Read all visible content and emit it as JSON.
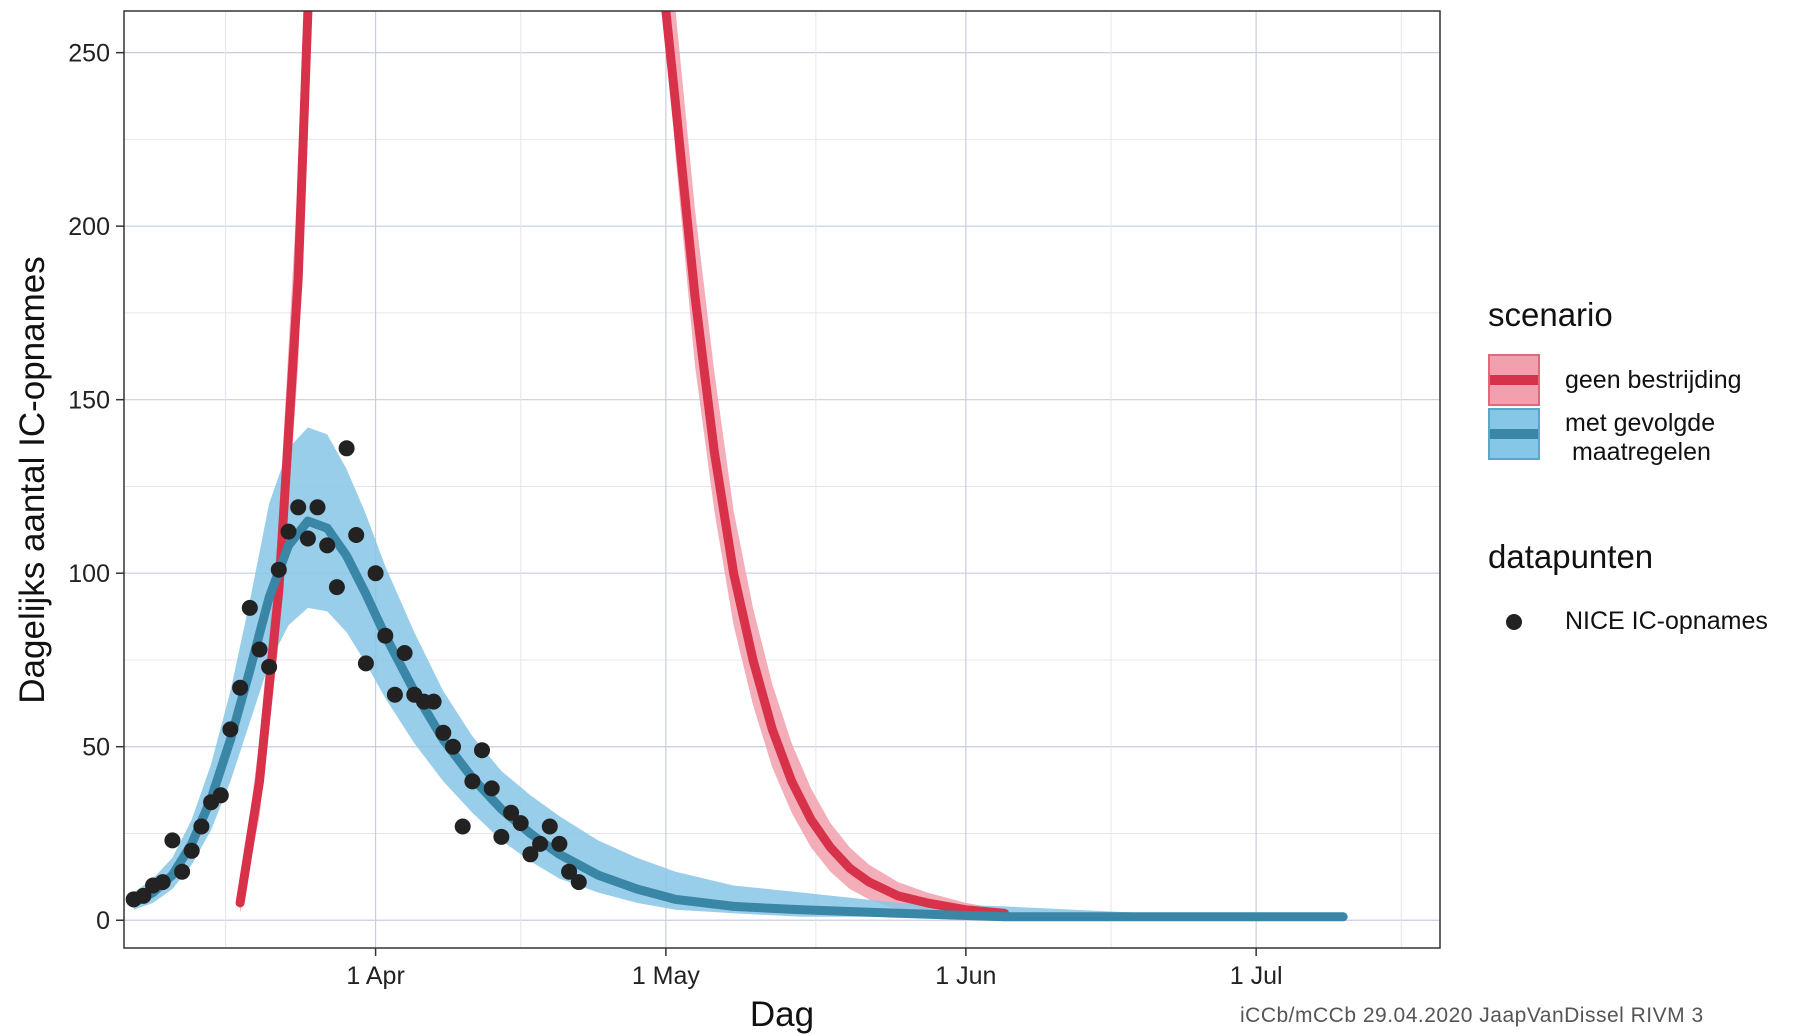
{
  "chart_data": {
    "type": "line",
    "xlabel": "Dag",
    "ylabel": "Dagelijks aantal IC-opnames",
    "ylim": [
      -8,
      262
    ],
    "xlim": [
      "2020-03-06",
      "2020-07-20"
    ],
    "y_ticks": [
      0,
      50,
      100,
      150,
      200,
      250
    ],
    "x_ticks": [
      {
        "date": "2020-04-01",
        "label": "1 Apr"
      },
      {
        "date": "2020-05-01",
        "label": "1 May"
      },
      {
        "date": "2020-06-01",
        "label": "1 Jun"
      },
      {
        "date": "2020-07-01",
        "label": "1 Jul"
      }
    ],
    "grid": true,
    "legend_position": "right",
    "legend_groups": [
      {
        "title": "scenario",
        "entries": [
          {
            "label": "geen bestrijding",
            "key": "ribbon",
            "color": "#d8324a",
            "fill": "#f2a0ad"
          },
          {
            "label": "met gevolgde\n maatregelen",
            "key": "ribbon",
            "color": "#3a86a6",
            "fill": "#86c6e6"
          }
        ]
      },
      {
        "title": "datapunten",
        "entries": [
          {
            "label": "NICE IC-opnames",
            "key": "point",
            "color": "#222222"
          }
        ]
      }
    ],
    "series": [
      {
        "name": "geen bestrijding",
        "type": "line_ribbon",
        "color": "#d8324a",
        "fill": "#f2a0ad",
        "segments": [
          [
            [
              "2020-03-18",
              5,
              2,
              8
            ],
            [
              "2020-03-20",
              40,
              30,
              52
            ],
            [
              "2020-03-22",
              95,
              80,
              115
            ],
            [
              "2020-03-24",
              185,
              160,
              215
            ],
            [
              "2020-03-25",
              262,
              235,
              262
            ]
          ],
          [
            [
              "2020-05-01",
              262,
              262,
              262
            ],
            [
              "2020-05-02",
              235,
              220,
              262
            ],
            [
              "2020-05-04",
              180,
              160,
              205
            ],
            [
              "2020-05-06",
              135,
              118,
              158
            ],
            [
              "2020-05-08",
              100,
              85,
              118
            ],
            [
              "2020-05-10",
              75,
              62,
              90
            ],
            [
              "2020-05-12",
              55,
              44,
              68
            ],
            [
              "2020-05-14",
              40,
              31,
              51
            ],
            [
              "2020-05-16",
              29,
              21,
              38
            ],
            [
              "2020-05-18",
              21,
              14,
              28
            ],
            [
              "2020-05-20",
              15,
              9,
              21
            ],
            [
              "2020-05-22",
              11,
              6,
              16
            ],
            [
              "2020-05-25",
              7,
              3,
              11
            ],
            [
              "2020-05-28",
              5,
              2,
              8
            ],
            [
              "2020-06-01",
              3,
              1,
              5
            ],
            [
              "2020-06-05",
              2,
              1,
              3
            ]
          ]
        ]
      },
      {
        "name": "met gevolgde\n maatregelen",
        "type": "line_ribbon",
        "color": "#3a86a6",
        "fill": "#86c6e6",
        "points": [
          [
            "2020-03-07",
            5,
            3,
            8
          ],
          [
            "2020-03-09",
            8,
            5,
            12
          ],
          [
            "2020-03-11",
            13,
            9,
            18
          ],
          [
            "2020-03-13",
            22,
            16,
            29
          ],
          [
            "2020-03-15",
            35,
            26,
            45
          ],
          [
            "2020-03-17",
            52,
            40,
            66
          ],
          [
            "2020-03-19",
            72,
            57,
            92
          ],
          [
            "2020-03-21",
            93,
            74,
            120
          ],
          [
            "2020-03-23",
            108,
            85,
            136
          ],
          [
            "2020-03-25",
            115,
            90,
            142
          ],
          [
            "2020-03-27",
            113,
            89,
            140
          ],
          [
            "2020-03-29",
            105,
            83,
            130
          ],
          [
            "2020-03-31",
            94,
            74,
            117
          ],
          [
            "2020-04-02",
            82,
            64,
            102
          ],
          [
            "2020-04-05",
            66,
            51,
            83
          ],
          [
            "2020-04-08",
            52,
            40,
            66
          ],
          [
            "2020-04-11",
            41,
            31,
            53
          ],
          [
            "2020-04-14",
            32,
            23,
            43
          ],
          [
            "2020-04-17",
            25,
            17,
            36
          ],
          [
            "2020-04-20",
            19,
            12,
            30
          ],
          [
            "2020-04-24",
            13,
            8,
            23
          ],
          [
            "2020-04-28",
            9,
            5,
            18
          ],
          [
            "2020-05-02",
            6,
            3,
            14
          ],
          [
            "2020-05-08",
            4,
            2,
            10
          ],
          [
            "2020-05-15",
            3,
            1,
            8
          ],
          [
            "2020-05-25",
            2,
            1,
            5
          ],
          [
            "2020-06-05",
            1,
            0,
            4
          ],
          [
            "2020-06-20",
            1,
            0,
            2
          ],
          [
            "2020-07-10",
            1,
            0,
            1
          ]
        ]
      },
      {
        "name": "NICE IC-opnames",
        "type": "scatter",
        "color": "#222222",
        "points": [
          [
            "2020-03-07",
            6
          ],
          [
            "2020-03-08",
            7
          ],
          [
            "2020-03-09",
            10
          ],
          [
            "2020-03-10",
            11
          ],
          [
            "2020-03-11",
            23
          ],
          [
            "2020-03-12",
            14
          ],
          [
            "2020-03-13",
            20
          ],
          [
            "2020-03-14",
            27
          ],
          [
            "2020-03-15",
            34
          ],
          [
            "2020-03-16",
            36
          ],
          [
            "2020-03-17",
            55
          ],
          [
            "2020-03-18",
            67
          ],
          [
            "2020-03-19",
            90
          ],
          [
            "2020-03-20",
            78
          ],
          [
            "2020-03-21",
            73
          ],
          [
            "2020-03-22",
            101
          ],
          [
            "2020-03-23",
            112
          ],
          [
            "2020-03-24",
            119
          ],
          [
            "2020-03-25",
            110
          ],
          [
            "2020-03-26",
            119
          ],
          [
            "2020-03-27",
            108
          ],
          [
            "2020-03-28",
            96
          ],
          [
            "2020-03-29",
            136
          ],
          [
            "2020-03-30",
            111
          ],
          [
            "2020-03-31",
            74
          ],
          [
            "2020-04-01",
            100
          ],
          [
            "2020-04-02",
            82
          ],
          [
            "2020-04-03",
            65
          ],
          [
            "2020-04-04",
            77
          ],
          [
            "2020-04-05",
            65
          ],
          [
            "2020-04-06",
            63
          ],
          [
            "2020-04-07",
            63
          ],
          [
            "2020-04-08",
            54
          ],
          [
            "2020-04-09",
            50
          ],
          [
            "2020-04-10",
            27
          ],
          [
            "2020-04-11",
            40
          ],
          [
            "2020-04-12",
            49
          ],
          [
            "2020-04-13",
            38
          ],
          [
            "2020-04-14",
            24
          ],
          [
            "2020-04-15",
            31
          ],
          [
            "2020-04-16",
            28
          ],
          [
            "2020-04-17",
            19
          ],
          [
            "2020-04-18",
            22
          ],
          [
            "2020-04-19",
            27
          ],
          [
            "2020-04-20",
            22
          ],
          [
            "2020-04-21",
            14
          ],
          [
            "2020-04-22",
            11
          ]
        ]
      }
    ]
  },
  "footer": "iCCb/mCCb 29.04.2020  JaapVanDissel  RIVM     3"
}
